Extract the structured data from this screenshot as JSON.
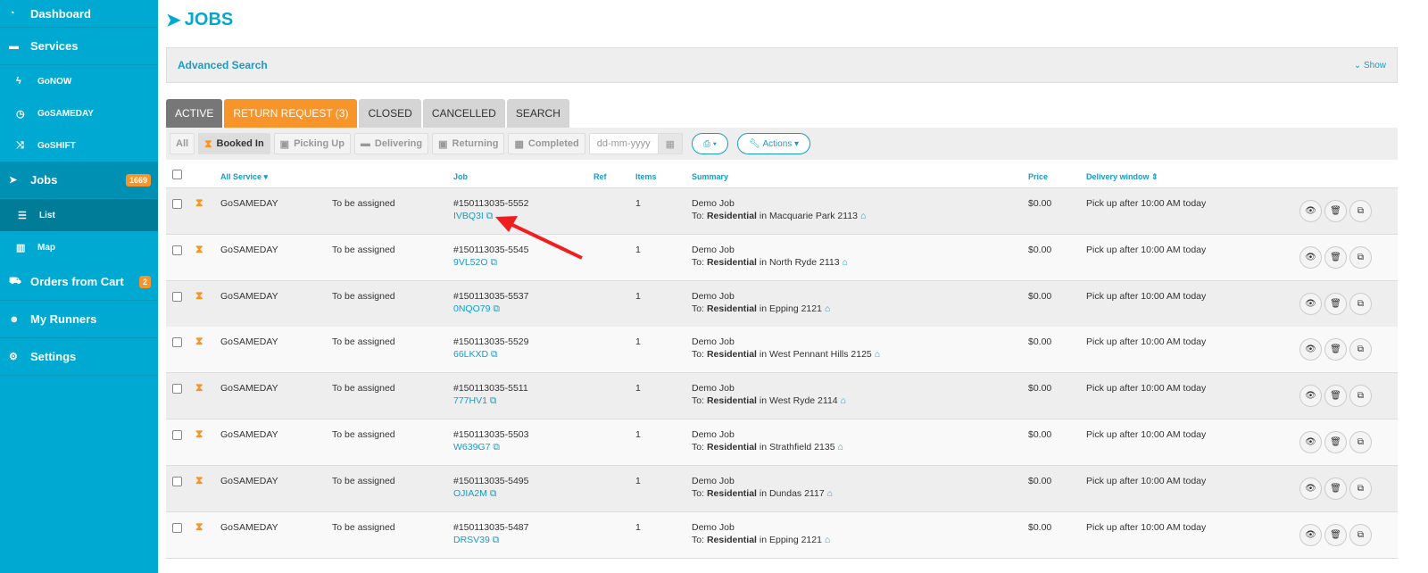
{
  "sidebar": {
    "items": [
      {
        "label": "Dashboard",
        "icon": "dashboard-icon",
        "glyph": "◔"
      },
      {
        "label": "Services",
        "icon": "truck-icon",
        "glyph": "▬"
      },
      {
        "label": "GoNOW",
        "icon": "bolt-icon",
        "glyph": "ϟ",
        "sub": true
      },
      {
        "label": "GoSAMEDAY",
        "icon": "clock-icon",
        "glyph": "◷",
        "sub": true
      },
      {
        "label": "GoSHIFT",
        "icon": "shuffle-icon",
        "glyph": "⤨",
        "sub": true
      },
      {
        "label": "Jobs",
        "icon": "paper-plane-icon",
        "glyph": "➤",
        "badge": "1669",
        "active": true
      },
      {
        "label": "List",
        "icon": "list-icon",
        "glyph": "☰",
        "sub": true,
        "active": true
      },
      {
        "label": "Map",
        "icon": "map-icon",
        "glyph": "▥",
        "sub": true
      },
      {
        "label": "Orders from Cart",
        "icon": "cart-icon",
        "glyph": "⛟",
        "badge": "2"
      },
      {
        "label": "My Runners",
        "icon": "users-icon",
        "glyph": "☻"
      },
      {
        "label": "Settings",
        "icon": "gear-icon",
        "glyph": "⚙"
      }
    ]
  },
  "page": {
    "title": "JOBS"
  },
  "advanced_search": {
    "title": "Advanced Search",
    "toggle": "Show"
  },
  "tabs": [
    "ACTIVE",
    "RETURN REQUEST (3)",
    "CLOSED",
    "CANCELLED",
    "SEARCH"
  ],
  "filters": [
    "All",
    "Booked In",
    "Picking Up",
    "Delivering",
    "Returning",
    "Completed"
  ],
  "date": {
    "placeholder": "dd-mm-yyyy"
  },
  "actions_label": "Actions",
  "columns": {
    "service": "All Service ▾",
    "job": "Job",
    "ref": "Ref",
    "items": "Items",
    "summary": "Summary",
    "price": "Price",
    "window": "Delivery window ⇕"
  },
  "rows": [
    {
      "service": "GoSAMEDAY",
      "runner": "To be assigned",
      "job": "#150113035-5552",
      "code": "IVBQ3I",
      "items": "1",
      "summary": "Demo Job",
      "to": "To:",
      "type": "Residential",
      "dest": "in Macquarie Park 2113",
      "price": "$0.00",
      "window": "Pick up after 10:00 AM today"
    },
    {
      "service": "GoSAMEDAY",
      "runner": "To be assigned",
      "job": "#150113035-5545",
      "code": "9VL52O",
      "items": "1",
      "summary": "Demo Job",
      "to": "To:",
      "type": "Residential",
      "dest": "in North Ryde 2113",
      "price": "$0.00",
      "window": "Pick up after 10:00 AM today"
    },
    {
      "service": "GoSAMEDAY",
      "runner": "To be assigned",
      "job": "#150113035-5537",
      "code": "0NQO79",
      "items": "1",
      "summary": "Demo Job",
      "to": "To:",
      "type": "Residential",
      "dest": "in Epping 2121",
      "price": "$0.00",
      "window": "Pick up after 10:00 AM today"
    },
    {
      "service": "GoSAMEDAY",
      "runner": "To be assigned",
      "job": "#150113035-5529",
      "code": "66LKXD",
      "items": "1",
      "summary": "Demo Job",
      "to": "To:",
      "type": "Residential",
      "dest": "in West Pennant Hills 2125",
      "price": "$0.00",
      "window": "Pick up after 10:00 AM today"
    },
    {
      "service": "GoSAMEDAY",
      "runner": "To be assigned",
      "job": "#150113035-5511",
      "code": "777HV1",
      "items": "1",
      "summary": "Demo Job",
      "to": "To:",
      "type": "Residential",
      "dest": "in West Ryde 2114",
      "price": "$0.00",
      "window": "Pick up after 10:00 AM today"
    },
    {
      "service": "GoSAMEDAY",
      "runner": "To be assigned",
      "job": "#150113035-5503",
      "code": "W639G7",
      "items": "1",
      "summary": "Demo Job",
      "to": "To:",
      "type": "Residential",
      "dest": "in Strathfield 2135",
      "price": "$0.00",
      "window": "Pick up after 10:00 AM today"
    },
    {
      "service": "GoSAMEDAY",
      "runner": "To be assigned",
      "job": "#150113035-5495",
      "code": "OJIA2M",
      "items": "1",
      "summary": "Demo Job",
      "to": "To:",
      "type": "Residential",
      "dest": "in Dundas 2117",
      "price": "$0.00",
      "window": "Pick up after 10:00 AM today"
    },
    {
      "service": "GoSAMEDAY",
      "runner": "To be assigned",
      "job": "#150113035-5487",
      "code": "DRSV39",
      "items": "1",
      "summary": "Demo Job",
      "to": "To:",
      "type": "Residential",
      "dest": "in Epping 2121",
      "price": "$0.00",
      "window": "Pick up after 10:00 AM today"
    }
  ],
  "colors": {
    "brand": "#00a9d1",
    "accent": "#f7952b",
    "annotation_arrow": "#f01e1e"
  }
}
